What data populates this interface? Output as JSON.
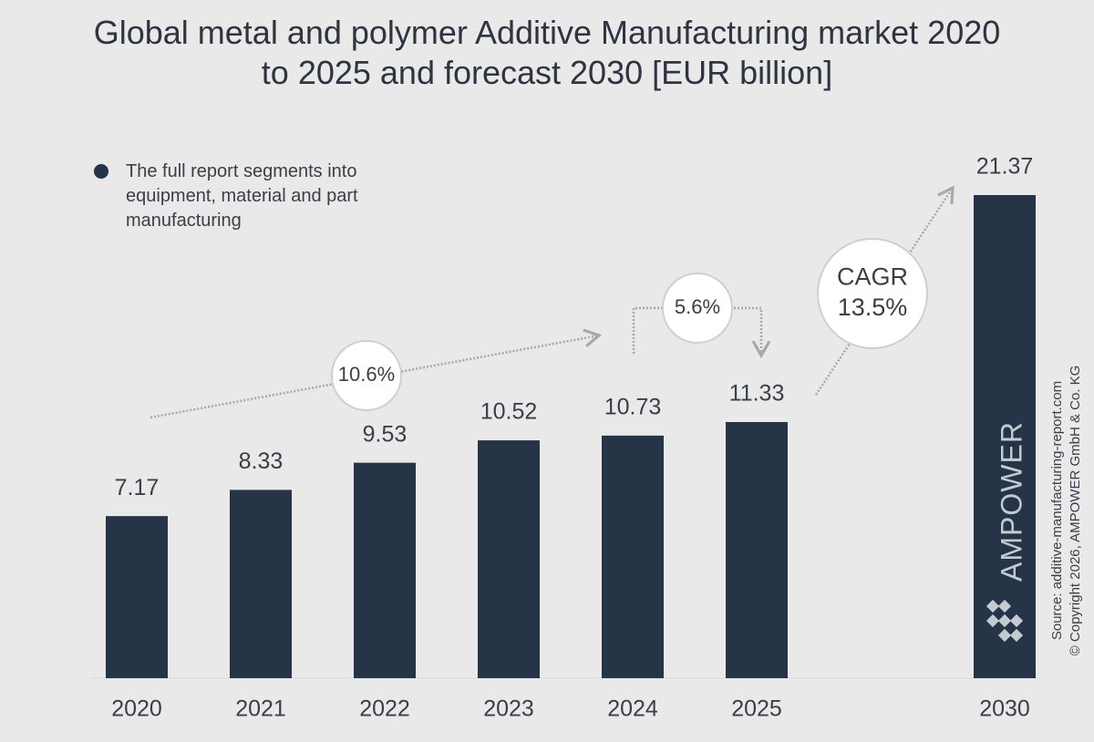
{
  "chart_data": {
    "type": "bar",
    "title": "Global metal and polymer Additive Manufacturing market 2020 to 2025 and forecast 2030 [EUR billion]",
    "note": "The full report segments into equipment, material and part manufacturing",
    "categories": [
      "2020",
      "2021",
      "2022",
      "2023",
      "2024",
      "2025",
      "2030"
    ],
    "values": [
      7.17,
      8.33,
      9.53,
      10.52,
      10.73,
      11.33,
      21.37
    ],
    "color": "#253447",
    "annotations": [
      {
        "lines": [
          "10.6%"
        ]
      },
      {
        "lines": [
          "5.6%"
        ]
      },
      {
        "lines": [
          "CAGR",
          "13.5%"
        ]
      }
    ],
    "logo": "AMPOWER",
    "source": "Source: additive-manufacturing-report.com",
    "copyright": "© Copyright 2026, AMPOWER GmbH & Co. KG"
  }
}
